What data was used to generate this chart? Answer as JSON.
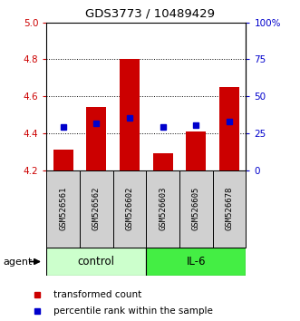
{
  "title": "GDS3773 / 10489429",
  "samples": [
    "GSM526561",
    "GSM526562",
    "GSM526602",
    "GSM526603",
    "GSM526605",
    "GSM526678"
  ],
  "bar_bottoms": [
    4.2,
    4.2,
    4.2,
    4.2,
    4.2,
    4.2
  ],
  "bar_tops": [
    4.31,
    4.54,
    4.8,
    4.29,
    4.41,
    4.65
  ],
  "blue_values": [
    4.435,
    4.452,
    4.482,
    4.435,
    4.445,
    4.462
  ],
  "ylim": [
    4.2,
    5.0
  ],
  "yticks": [
    4.2,
    4.4,
    4.6,
    4.8,
    5.0
  ],
  "right_yticks": [
    0,
    25,
    50,
    75,
    100
  ],
  "right_ylabels": [
    "0",
    "25",
    "50",
    "75",
    "100%"
  ],
  "bar_color": "#cc0000",
  "blue_color": "#0000cc",
  "control_color": "#ccffcc",
  "il6_color": "#44ee44",
  "label_bg_color": "#d0d0d0",
  "title_color": "#000000",
  "left_tick_color": "#cc0000",
  "right_tick_color": "#0000cc",
  "group_control": "control",
  "group_il6": "IL-6",
  "legend_red": "transformed count",
  "legend_blue": "percentile rank within the sample",
  "agent_label": "agent",
  "n_control": 3,
  "n_il6": 3
}
